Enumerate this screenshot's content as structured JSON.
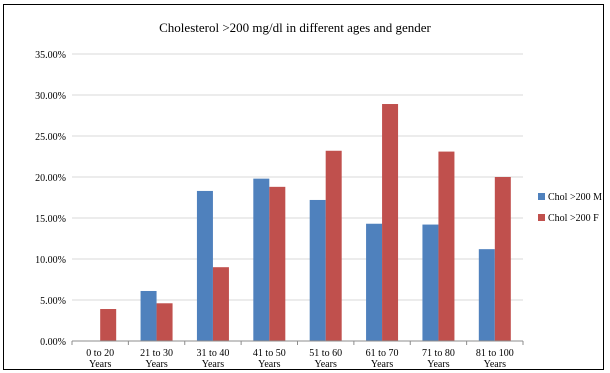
{
  "chart_data": {
    "type": "bar",
    "title": "Cholesterol >200 mg/dl in different ages  and  gender",
    "xlabel": "",
    "ylabel": "",
    "categories": [
      [
        "0  to 20",
        "Years"
      ],
      [
        "21  to 30",
        "Years"
      ],
      [
        "31  to 40",
        "Years"
      ],
      [
        "41  to 50",
        "Years"
      ],
      [
        "51  to 60",
        "Years"
      ],
      [
        "61  to 70",
        "Years"
      ],
      [
        "71  to 80",
        "Years"
      ],
      [
        "81  to 100",
        "Years"
      ]
    ],
    "ylim": [
      0,
      0.35
    ],
    "yticks": [
      0,
      0.05,
      0.1,
      0.15,
      0.2,
      0.25,
      0.3,
      0.35
    ],
    "ytick_labels": [
      "0.00%",
      "5.00%",
      "10.00%",
      "15.00%",
      "20.00%",
      "25.00%",
      "30.00%",
      "35.00%"
    ],
    "grid": true,
    "legend_position": "right",
    "series": [
      {
        "name": "Chol >200 M",
        "color": "#4F81BD",
        "values": [
          0.0,
          0.061,
          0.183,
          0.198,
          0.172,
          0.143,
          0.142,
          0.112
        ]
      },
      {
        "name": "Chol >200 F",
        "color": "#C0504D",
        "values": [
          0.039,
          0.046,
          0.09,
          0.188,
          0.232,
          0.289,
          0.231,
          0.2
        ]
      }
    ]
  }
}
